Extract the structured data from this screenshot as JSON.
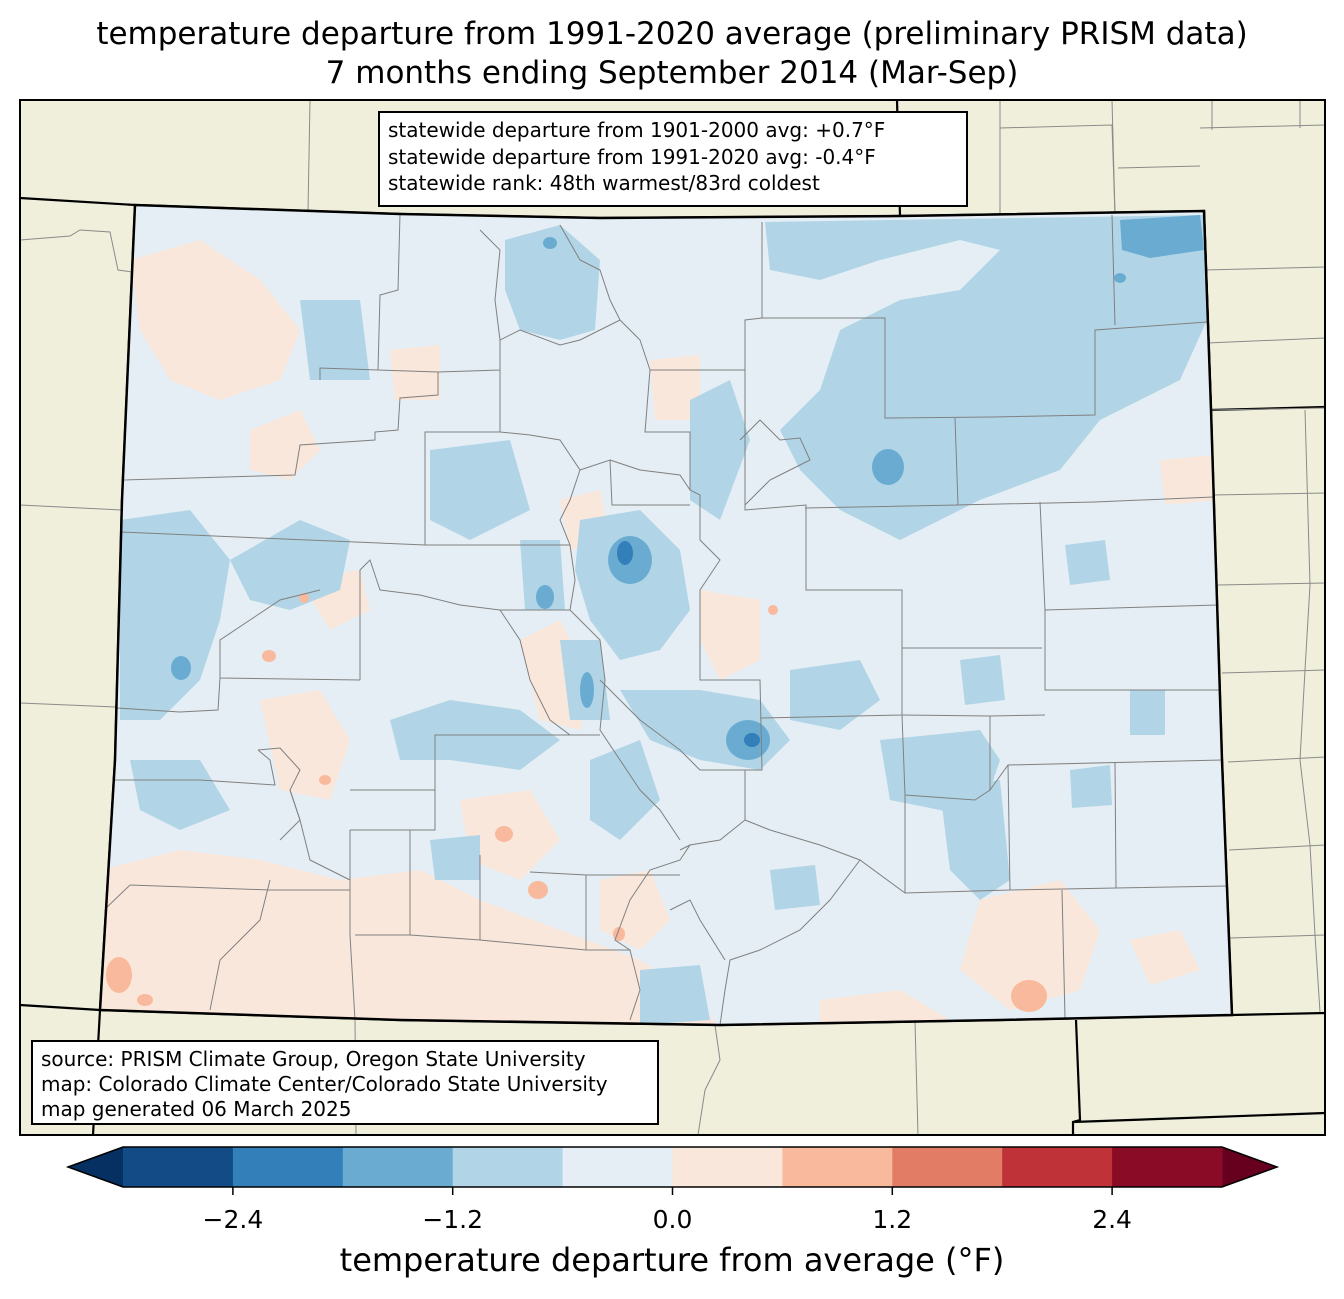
{
  "title": {
    "line1": "temperature departure from 1991-2020 average (preliminary PRISM data)",
    "line2": "7 months ending September 2014 (Mar-Sep)"
  },
  "stats": {
    "line1": "statewide departure from 1901-2000 avg: +0.7°F",
    "line2": "statewide departure from 1991-2020 avg: -0.4°F",
    "line3": "statewide rank: 48th warmest/83rd coldest"
  },
  "source": {
    "line1": "source: PRISM Climate Group, Oregon State University",
    "line2": "map: Colorado Climate Center/Colorado State University",
    "line3": "map generated 06 March 2025"
  },
  "colorbar": {
    "label": "temperature departure from average (°F)",
    "levels": [
      -3.0,
      -2.4,
      -1.8,
      -1.2,
      -0.6,
      0.0,
      0.6,
      1.2,
      1.8,
      2.4,
      3.0
    ],
    "ticks": [
      "−2.4",
      "−1.2",
      "0.0",
      "1.2",
      "2.4"
    ],
    "tick_values": [
      -2.4,
      -1.2,
      0.0,
      1.2,
      2.4
    ],
    "colors": [
      "#134b87",
      "#327fba",
      "#6aacd1",
      "#b1d5e7",
      "#e5eef4",
      "#fae7dc",
      "#f8b99c",
      "#e27c65",
      "#bf3338",
      "#8a0b25"
    ],
    "under_color": "#053061",
    "over_color": "#67001f"
  },
  "map_colors": {
    "land": "#efefdb",
    "border": "#000000",
    "county": "#808080"
  }
}
